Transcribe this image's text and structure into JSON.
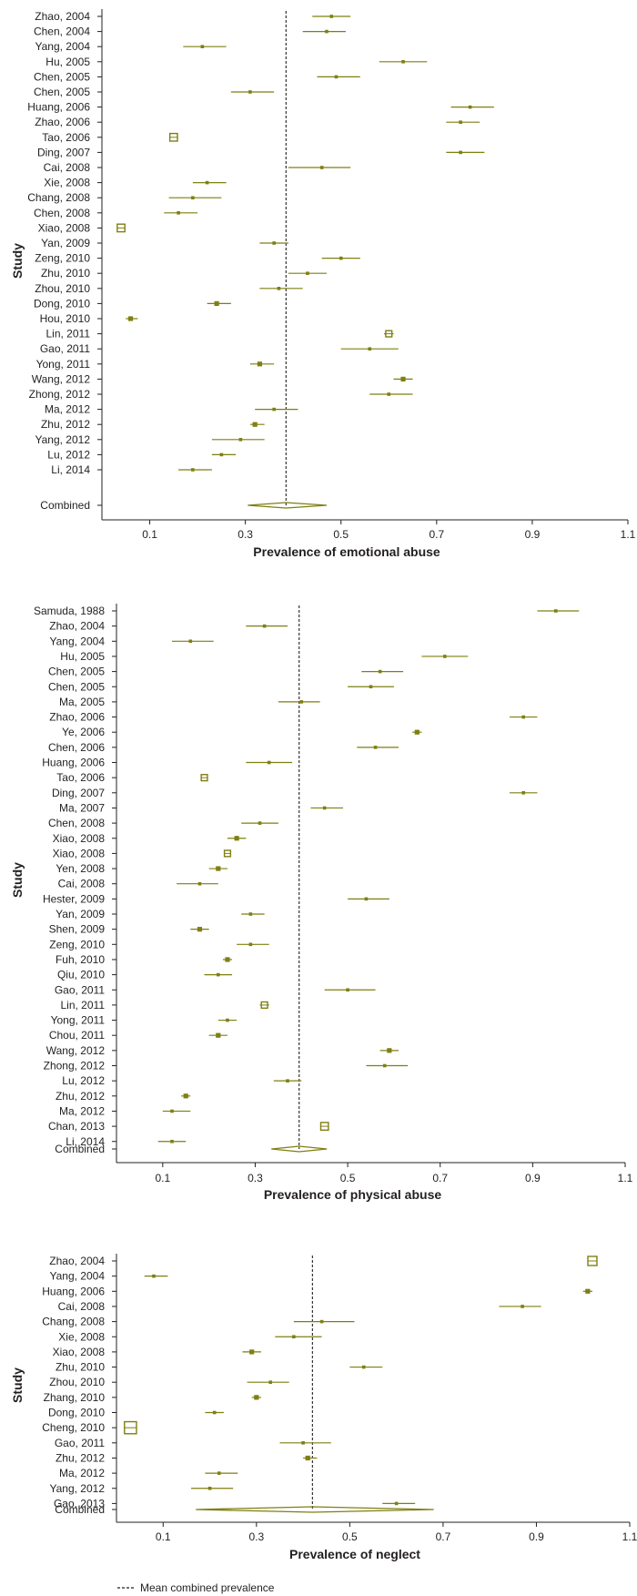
{
  "figure": {
    "legend": {
      "label": "Mean combined prevalence",
      "line_style": "dashed"
    },
    "colors": {
      "marker": "#7f7f12",
      "axis": "#231f20",
      "text": "#231f20",
      "mean_line": "#231f20"
    }
  },
  "chart_data": [
    {
      "type": "forest",
      "xlabel": "Prevalence of emotional abuse",
      "ylabel": "Study",
      "xlim": [
        0,
        1.1
      ],
      "xticks": [
        0.1,
        0.3,
        0.5,
        0.7,
        0.9,
        1.1
      ],
      "mean": 0.385,
      "combined": {
        "label": "Combined",
        "est": 0.385,
        "low": 0.305,
        "high": 0.47
      },
      "studies": [
        {
          "label": "Zhao, 2004",
          "est": 0.48,
          "low": 0.44,
          "high": 0.52,
          "weight": 1
        },
        {
          "label": "Chen, 2004",
          "est": 0.47,
          "low": 0.42,
          "high": 0.51,
          "weight": 1
        },
        {
          "label": "Yang, 2004",
          "est": 0.21,
          "low": 0.17,
          "high": 0.26,
          "weight": 1
        },
        {
          "label": "Hu, 2005",
          "est": 0.63,
          "low": 0.58,
          "high": 0.68,
          "weight": 1
        },
        {
          "label": "Chen, 2005",
          "est": 0.49,
          "low": 0.45,
          "high": 0.54,
          "weight": 1
        },
        {
          "label": "Chen, 2005",
          "est": 0.31,
          "low": 0.27,
          "high": 0.36,
          "weight": 1
        },
        {
          "label": "Huang, 2006",
          "est": 0.77,
          "low": 0.73,
          "high": 0.82,
          "weight": 1
        },
        {
          "label": "Zhao, 2006",
          "est": 0.75,
          "low": 0.72,
          "high": 0.79,
          "weight": 1
        },
        {
          "label": "Tao, 2006",
          "est": 0.15,
          "low": 0.145,
          "high": 0.155,
          "weight": 4
        },
        {
          "label": "Ding, 2007",
          "est": 0.75,
          "low": 0.72,
          "high": 0.8,
          "weight": 1
        },
        {
          "label": "Cai, 2008",
          "est": 0.46,
          "low": 0.39,
          "high": 0.52,
          "weight": 1
        },
        {
          "label": "Xie, 2008",
          "est": 0.22,
          "low": 0.19,
          "high": 0.26,
          "weight": 1
        },
        {
          "label": "Chang, 2008",
          "est": 0.19,
          "low": 0.14,
          "high": 0.25,
          "weight": 1
        },
        {
          "label": "Chen, 2008",
          "est": 0.16,
          "low": 0.13,
          "high": 0.2,
          "weight": 1
        },
        {
          "label": "Xiao, 2008",
          "est": 0.04,
          "low": 0.035,
          "high": 0.045,
          "weight": 4
        },
        {
          "label": "Yan, 2009",
          "est": 0.36,
          "low": 0.33,
          "high": 0.39,
          "weight": 1
        },
        {
          "label": "Zeng, 2010",
          "est": 0.5,
          "low": 0.46,
          "high": 0.54,
          "weight": 1
        },
        {
          "label": "Zhu, 2010",
          "est": 0.43,
          "low": 0.39,
          "high": 0.47,
          "weight": 1
        },
        {
          "label": "Zhou, 2010",
          "est": 0.37,
          "low": 0.33,
          "high": 0.42,
          "weight": 1
        },
        {
          "label": "Dong, 2010",
          "est": 0.24,
          "low": 0.22,
          "high": 0.27,
          "weight": 2
        },
        {
          "label": "Hou, 2010",
          "est": 0.06,
          "low": 0.05,
          "high": 0.075,
          "weight": 2
        },
        {
          "label": "Lin, 2011",
          "est": 0.6,
          "low": 0.59,
          "high": 0.61,
          "weight": 3
        },
        {
          "label": "Gao, 2011",
          "est": 0.56,
          "low": 0.5,
          "high": 0.62,
          "weight": 1
        },
        {
          "label": "Yong, 2011",
          "est": 0.33,
          "low": 0.31,
          "high": 0.36,
          "weight": 2
        },
        {
          "label": "Wang, 2012",
          "est": 0.63,
          "low": 0.61,
          "high": 0.65,
          "weight": 2
        },
        {
          "label": "Zhong, 2012",
          "est": 0.6,
          "low": 0.56,
          "high": 0.65,
          "weight": 1
        },
        {
          "label": "Ma, 2012",
          "est": 0.36,
          "low": 0.32,
          "high": 0.41,
          "weight": 1
        },
        {
          "label": "Zhu, 2012",
          "est": 0.32,
          "low": 0.31,
          "high": 0.34,
          "weight": 2
        },
        {
          "label": "Yang, 2012",
          "est": 0.29,
          "low": 0.23,
          "high": 0.34,
          "weight": 1
        },
        {
          "label": "Lu, 2012",
          "est": 0.25,
          "low": 0.23,
          "high": 0.28,
          "weight": 1
        },
        {
          "label": "Li, 2014",
          "est": 0.19,
          "low": 0.16,
          "high": 0.23,
          "weight": 1
        }
      ]
    },
    {
      "type": "forest",
      "xlabel": "Prevalence of physical abuse",
      "ylabel": "Study",
      "xlim": [
        0,
        1.1
      ],
      "xticks": [
        0.1,
        0.3,
        0.5,
        0.7,
        0.9,
        1.1
      ],
      "mean": 0.395,
      "combined": {
        "label": "Combined",
        "est": 0.395,
        "low": 0.335,
        "high": 0.455
      },
      "studies": [
        {
          "label": "Samuda, 1988",
          "est": 0.95,
          "low": 0.91,
          "high": 1.0,
          "weight": 1
        },
        {
          "label": "Zhao, 2004",
          "est": 0.32,
          "low": 0.28,
          "high": 0.37,
          "weight": 1
        },
        {
          "label": "Yang, 2004",
          "est": 0.16,
          "low": 0.12,
          "high": 0.21,
          "weight": 1
        },
        {
          "label": "Hu, 2005",
          "est": 0.71,
          "low": 0.66,
          "high": 0.76,
          "weight": 1
        },
        {
          "label": "Chen, 2005",
          "est": 0.57,
          "low": 0.53,
          "high": 0.62,
          "weight": 1
        },
        {
          "label": "Chen, 2005",
          "est": 0.55,
          "low": 0.5,
          "high": 0.6,
          "weight": 1
        },
        {
          "label": "Ma, 2005",
          "est": 0.4,
          "low": 0.35,
          "high": 0.44,
          "weight": 1
        },
        {
          "label": "Zhao, 2006",
          "est": 0.88,
          "low": 0.85,
          "high": 0.91,
          "weight": 1
        },
        {
          "label": "Ye, 2006",
          "est": 0.65,
          "low": 0.64,
          "high": 0.66,
          "weight": 2
        },
        {
          "label": "Chen, 2006",
          "est": 0.56,
          "low": 0.52,
          "high": 0.61,
          "weight": 1
        },
        {
          "label": "Huang, 2006",
          "est": 0.33,
          "low": 0.28,
          "high": 0.38,
          "weight": 1
        },
        {
          "label": "Tao, 2006",
          "est": 0.19,
          "low": 0.185,
          "high": 0.195,
          "weight": 3
        },
        {
          "label": "Ding, 2007",
          "est": 0.88,
          "low": 0.85,
          "high": 0.91,
          "weight": 1
        },
        {
          "label": "Ma, 2007",
          "est": 0.45,
          "low": 0.42,
          "high": 0.49,
          "weight": 1
        },
        {
          "label": "Chen, 2008",
          "est": 0.31,
          "low": 0.27,
          "high": 0.35,
          "weight": 1
        },
        {
          "label": "Xiao, 2008",
          "est": 0.26,
          "low": 0.24,
          "high": 0.28,
          "weight": 2
        },
        {
          "label": "Xiao, 2008",
          "est": 0.24,
          "low": 0.235,
          "high": 0.245,
          "weight": 3
        },
        {
          "label": "Yen, 2008",
          "est": 0.22,
          "low": 0.2,
          "high": 0.24,
          "weight": 2
        },
        {
          "label": "Cai, 2008",
          "est": 0.18,
          "low": 0.13,
          "high": 0.22,
          "weight": 1
        },
        {
          "label": "Hester, 2009",
          "est": 0.54,
          "low": 0.5,
          "high": 0.59,
          "weight": 1
        },
        {
          "label": "Yan, 2009",
          "est": 0.29,
          "low": 0.27,
          "high": 0.32,
          "weight": 1
        },
        {
          "label": "Shen, 2009",
          "est": 0.18,
          "low": 0.16,
          "high": 0.2,
          "weight": 2
        },
        {
          "label": "Zeng, 2010",
          "est": 0.29,
          "low": 0.26,
          "high": 0.33,
          "weight": 1
        },
        {
          "label": "Fuh, 2010",
          "est": 0.24,
          "low": 0.23,
          "high": 0.25,
          "weight": 2
        },
        {
          "label": "Qiu, 2010",
          "est": 0.22,
          "low": 0.19,
          "high": 0.25,
          "weight": 1
        },
        {
          "label": "Gao, 2011",
          "est": 0.5,
          "low": 0.45,
          "high": 0.56,
          "weight": 1
        },
        {
          "label": "Lin, 2011",
          "est": 0.32,
          "low": 0.31,
          "high": 0.33,
          "weight": 3
        },
        {
          "label": "Yong, 2011",
          "est": 0.24,
          "low": 0.22,
          "high": 0.26,
          "weight": 1
        },
        {
          "label": "Chou, 2011",
          "est": 0.22,
          "low": 0.2,
          "high": 0.24,
          "weight": 2
        },
        {
          "label": "Wang, 2012",
          "est": 0.59,
          "low": 0.57,
          "high": 0.61,
          "weight": 2
        },
        {
          "label": "Zhong, 2012",
          "est": 0.58,
          "low": 0.54,
          "high": 0.63,
          "weight": 1
        },
        {
          "label": "Lu, 2012",
          "est": 0.37,
          "low": 0.34,
          "high": 0.4,
          "weight": 1
        },
        {
          "label": "Zhu, 2012",
          "est": 0.15,
          "low": 0.14,
          "high": 0.16,
          "weight": 2
        },
        {
          "label": "Ma, 2012",
          "est": 0.12,
          "low": 0.1,
          "high": 0.16,
          "weight": 1
        },
        {
          "label": "Chan, 2013",
          "est": 0.45,
          "low": 0.445,
          "high": 0.455,
          "weight": 4
        },
        {
          "label": "Li, 2014",
          "est": 0.12,
          "low": 0.09,
          "high": 0.15,
          "weight": 1
        }
      ]
    },
    {
      "type": "forest",
      "xlabel": "Prevalence of neglect",
      "ylabel": "Study",
      "xlim": [
        0,
        1.1
      ],
      "xticks": [
        0.1,
        0.3,
        0.5,
        0.7,
        0.9,
        1.1
      ],
      "mean": 0.42,
      "combined": {
        "label": "Combined",
        "est": 0.42,
        "low": 0.17,
        "high": 0.68
      },
      "studies": [
        {
          "label": "Zhao, 2004",
          "est": 1.02,
          "low": 1.01,
          "high": 1.03,
          "weight": 5
        },
        {
          "label": "Yang, 2004",
          "est": 0.08,
          "low": 0.06,
          "high": 0.11,
          "weight": 1
        },
        {
          "label": "Huang, 2006",
          "est": 1.01,
          "low": 1.0,
          "high": 1.02,
          "weight": 2
        },
        {
          "label": "Cai, 2008",
          "est": 0.87,
          "low": 0.82,
          "high": 0.91,
          "weight": 1
        },
        {
          "label": "Chang, 2008",
          "est": 0.44,
          "low": 0.38,
          "high": 0.51,
          "weight": 1
        },
        {
          "label": "Xie, 2008",
          "est": 0.38,
          "low": 0.34,
          "high": 0.44,
          "weight": 1
        },
        {
          "label": "Xiao, 2008",
          "est": 0.29,
          "low": 0.27,
          "high": 0.31,
          "weight": 2
        },
        {
          "label": "Zhu, 2010",
          "est": 0.53,
          "low": 0.5,
          "high": 0.57,
          "weight": 1
        },
        {
          "label": "Zhou, 2010",
          "est": 0.33,
          "low": 0.28,
          "high": 0.37,
          "weight": 1
        },
        {
          "label": "Zhang, 2010",
          "est": 0.3,
          "low": 0.29,
          "high": 0.31,
          "weight": 2
        },
        {
          "label": "Dong, 2010",
          "est": 0.21,
          "low": 0.19,
          "high": 0.23,
          "weight": 1
        },
        {
          "label": "Cheng, 2010",
          "est": 0.03,
          "low": 0.025,
          "high": 0.035,
          "weight": 7
        },
        {
          "label": "Gao, 2011",
          "est": 0.4,
          "low": 0.35,
          "high": 0.46,
          "weight": 1
        },
        {
          "label": "Zhu, 2012",
          "est": 0.41,
          "low": 0.4,
          "high": 0.43,
          "weight": 2
        },
        {
          "label": "Ma, 2012",
          "est": 0.22,
          "low": 0.19,
          "high": 0.26,
          "weight": 1
        },
        {
          "label": "Yang, 2012",
          "est": 0.2,
          "low": 0.16,
          "high": 0.25,
          "weight": 1
        },
        {
          "label": "Gao, 2013",
          "est": 0.6,
          "low": 0.57,
          "high": 0.64,
          "weight": 1
        }
      ]
    }
  ]
}
